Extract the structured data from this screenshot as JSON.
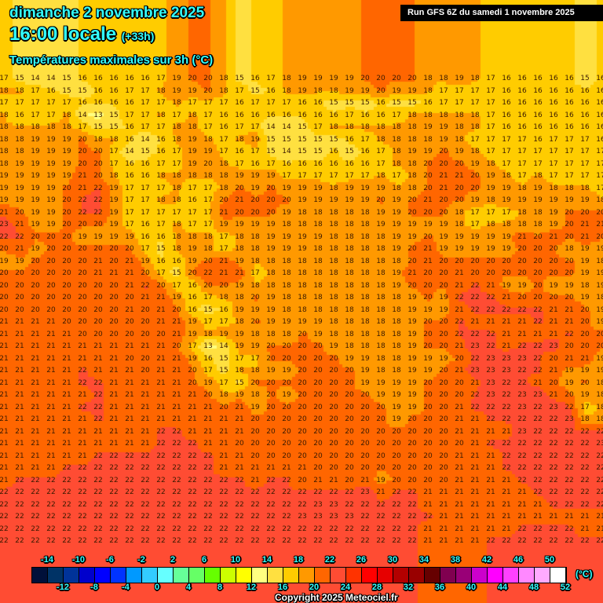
{
  "header": {
    "date": "dimanche 2 novembre 2025",
    "time": "16:00 locale",
    "lead": "(+33h)",
    "parameter": "Températures maximales sur 3h (°C)",
    "run": "Run GFS 6Z du samedi 1 novembre 2025"
  },
  "legend": {
    "unit": "(°C)",
    "min": -16,
    "step": 2,
    "colors": [
      "#00103a",
      "#003366",
      "#003399",
      "#0000cc",
      "#0000ff",
      "#0033ff",
      "#0099ff",
      "#33ccff",
      "#66ffff",
      "#66ff99",
      "#66ff66",
      "#66ff00",
      "#ccff00",
      "#ffff00",
      "#ffff80",
      "#ffe040",
      "#ffcc00",
      "#ff9900",
      "#ff6600",
      "#ff4c33",
      "#ff3300",
      "#ff0000",
      "#e60000",
      "#b30000",
      "#990000",
      "#660000",
      "#800050",
      "#990077",
      "#cc00cc",
      "#ff00ff",
      "#ff40ff",
      "#ff88ff",
      "#ffaaff",
      "#ffffff"
    ],
    "top_labels": [
      "-14",
      "-10",
      "-6",
      "-2",
      "2",
      "6",
      "10",
      "14",
      "18",
      "22",
      "26",
      "30",
      "34",
      "38",
      "42",
      "46",
      "50"
    ],
    "bottom_labels": [
      "-12",
      "-8",
      "-4",
      "0",
      "4",
      "8",
      "12",
      "16",
      "20",
      "24",
      "28",
      "32",
      "36",
      "40",
      "44",
      "48",
      "52"
    ]
  },
  "copyright": "Copyright 2025 Meteociel.fr",
  "grid_values": [
    [
      17,
      15,
      14,
      14,
      15,
      16,
      16,
      16,
      16,
      16,
      17,
      19,
      20,
      20,
      18,
      15,
      16,
      17,
      18,
      19,
      19,
      19,
      19,
      20,
      20,
      20,
      20,
      18,
      18,
      19,
      18,
      17,
      16,
      16,
      16,
      16,
      16,
      15,
      16
    ],
    [
      18,
      18,
      17,
      16,
      15,
      15,
      16,
      16,
      17,
      17,
      18,
      19,
      19,
      20,
      18,
      17,
      15,
      16,
      18,
      19,
      18,
      18,
      19,
      19,
      20,
      19,
      19,
      18,
      17,
      17,
      17,
      17,
      16,
      16,
      16,
      16,
      16,
      16,
      16
    ],
    [
      17,
      17,
      17,
      17,
      17,
      16,
      16,
      16,
      16,
      17,
      17,
      18,
      17,
      17,
      17,
      16,
      17,
      17,
      17,
      16,
      16,
      15,
      15,
      15,
      16,
      15,
      15,
      16,
      17,
      17,
      17,
      17,
      16,
      16,
      16,
      16,
      16,
      16,
      16
    ],
    [
      18,
      16,
      17,
      17,
      18,
      14,
      13,
      15,
      17,
      17,
      18,
      17,
      18,
      17,
      16,
      16,
      16,
      16,
      16,
      16,
      16,
      16,
      17,
      16,
      16,
      17,
      18,
      18,
      18,
      18,
      18,
      17,
      16,
      16,
      16,
      16,
      16,
      16,
      16
    ],
    [
      18,
      18,
      18,
      18,
      18,
      17,
      15,
      15,
      16,
      17,
      17,
      18,
      18,
      17,
      16,
      17,
      17,
      14,
      14,
      15,
      17,
      18,
      18,
      18,
      18,
      18,
      18,
      19,
      19,
      18,
      18,
      17,
      16,
      16,
      16,
      16,
      16,
      16,
      16
    ],
    [
      18,
      18,
      19,
      19,
      19,
      20,
      18,
      18,
      16,
      14,
      16,
      18,
      19,
      18,
      17,
      18,
      19,
      15,
      15,
      15,
      15,
      15,
      16,
      17,
      18,
      18,
      18,
      18,
      19,
      18,
      17,
      17,
      17,
      17,
      16,
      17,
      17,
      17,
      16
    ],
    [
      18,
      18,
      19,
      19,
      19,
      20,
      20,
      17,
      14,
      15,
      16,
      17,
      19,
      19,
      17,
      16,
      17,
      15,
      14,
      15,
      15,
      16,
      15,
      16,
      17,
      18,
      19,
      19,
      20,
      19,
      18,
      17,
      17,
      17,
      17,
      17,
      17,
      17,
      17
    ],
    [
      18,
      19,
      19,
      19,
      19,
      20,
      20,
      17,
      16,
      16,
      17,
      17,
      19,
      20,
      18,
      17,
      16,
      17,
      16,
      16,
      16,
      16,
      16,
      16,
      17,
      18,
      18,
      20,
      20,
      20,
      19,
      18,
      17,
      17,
      17,
      17,
      17,
      17,
      17
    ],
    [
      19,
      19,
      19,
      19,
      19,
      21,
      20,
      18,
      16,
      16,
      18,
      18,
      18,
      18,
      18,
      19,
      19,
      19,
      17,
      17,
      17,
      17,
      17,
      17,
      18,
      17,
      18,
      20,
      21,
      21,
      20,
      19,
      18,
      17,
      18,
      17,
      17,
      17,
      17
    ],
    [
      19,
      19,
      19,
      19,
      20,
      21,
      22,
      19,
      17,
      17,
      17,
      18,
      17,
      17,
      18,
      20,
      19,
      20,
      19,
      19,
      19,
      18,
      19,
      19,
      19,
      18,
      18,
      20,
      21,
      20,
      20,
      19,
      19,
      18,
      19,
      18,
      18,
      18,
      17
    ],
    [
      19,
      19,
      19,
      19,
      20,
      22,
      22,
      19,
      17,
      17,
      18,
      18,
      16,
      17,
      20,
      21,
      20,
      20,
      20,
      19,
      19,
      19,
      19,
      19,
      20,
      19,
      20,
      21,
      20,
      20,
      19,
      18,
      19,
      19,
      19,
      19,
      19,
      19,
      18
    ],
    [
      21,
      20,
      19,
      19,
      20,
      22,
      22,
      19,
      17,
      17,
      17,
      17,
      17,
      17,
      21,
      20,
      20,
      20,
      19,
      18,
      18,
      18,
      18,
      18,
      19,
      19,
      20,
      20,
      20,
      18,
      17,
      17,
      17,
      18,
      18,
      19,
      20,
      20,
      20
    ],
    [
      23,
      21,
      19,
      19,
      20,
      20,
      20,
      19,
      17,
      16,
      17,
      18,
      17,
      17,
      19,
      19,
      19,
      19,
      18,
      18,
      18,
      18,
      18,
      18,
      19,
      19,
      19,
      19,
      19,
      18,
      17,
      18,
      18,
      18,
      18,
      19,
      20,
      21,
      21
    ],
    [
      22,
      22,
      20,
      20,
      20,
      19,
      19,
      19,
      19,
      16,
      16,
      18,
      18,
      18,
      17,
      18,
      18,
      19,
      19,
      19,
      19,
      18,
      18,
      18,
      18,
      19,
      19,
      20,
      19,
      19,
      19,
      19,
      19,
      21,
      20,
      21,
      20,
      21,
      20
    ],
    [
      20,
      21,
      19,
      20,
      20,
      20,
      20,
      20,
      20,
      17,
      15,
      18,
      19,
      18,
      17,
      18,
      18,
      19,
      19,
      19,
      18,
      18,
      18,
      18,
      18,
      19,
      20,
      21,
      19,
      19,
      19,
      19,
      19,
      20,
      20,
      20,
      18,
      19,
      19
    ],
    [
      19,
      19,
      20,
      20,
      20,
      20,
      21,
      20,
      21,
      19,
      16,
      16,
      19,
      20,
      21,
      19,
      18,
      18,
      18,
      18,
      18,
      18,
      18,
      18,
      18,
      18,
      20,
      21,
      20,
      20,
      20,
      20,
      20,
      20,
      20,
      20,
      20,
      19,
      18
    ],
    [
      20,
      20,
      20,
      20,
      20,
      20,
      21,
      21,
      21,
      20,
      17,
      15,
      20,
      22,
      21,
      21,
      17,
      18,
      18,
      18,
      18,
      18,
      18,
      18,
      18,
      19,
      21,
      20,
      20,
      21,
      20,
      20,
      20,
      20,
      20,
      20,
      20,
      19,
      19
    ],
    [
      20,
      20,
      20,
      20,
      20,
      20,
      20,
      20,
      21,
      22,
      20,
      17,
      16,
      20,
      20,
      19,
      18,
      18,
      18,
      18,
      18,
      18,
      18,
      18,
      18,
      19,
      20,
      20,
      20,
      21,
      22,
      21,
      19,
      19,
      20,
      19,
      19,
      18,
      19
    ],
    [
      20,
      20,
      20,
      20,
      20,
      20,
      20,
      20,
      20,
      21,
      21,
      19,
      16,
      17,
      18,
      18,
      20,
      19,
      18,
      18,
      18,
      18,
      18,
      18,
      18,
      18,
      19,
      20,
      19,
      22,
      22,
      22,
      21,
      20,
      20,
      20,
      20,
      19,
      18
    ],
    [
      20,
      20,
      20,
      20,
      20,
      20,
      20,
      20,
      21,
      20,
      21,
      20,
      16,
      15,
      16,
      19,
      19,
      19,
      18,
      18,
      18,
      18,
      18,
      18,
      18,
      18,
      19,
      19,
      19,
      21,
      22,
      22,
      22,
      22,
      22,
      21,
      21,
      20,
      19
    ],
    [
      21,
      21,
      21,
      21,
      20,
      20,
      20,
      20,
      20,
      20,
      21,
      21,
      19,
      17,
      17,
      18,
      20,
      19,
      19,
      19,
      19,
      18,
      18,
      18,
      18,
      18,
      19,
      20,
      20,
      22,
      21,
      21,
      21,
      21,
      22,
      21,
      21,
      20,
      19
    ],
    [
      21,
      21,
      21,
      21,
      21,
      20,
      20,
      20,
      20,
      20,
      20,
      21,
      19,
      18,
      19,
      19,
      18,
      18,
      18,
      20,
      19,
      18,
      18,
      18,
      18,
      18,
      19,
      20,
      20,
      22,
      22,
      22,
      21,
      21,
      21,
      21,
      22,
      20,
      20
    ],
    [
      21,
      21,
      21,
      21,
      21,
      21,
      21,
      21,
      21,
      21,
      21,
      20,
      17,
      13,
      14,
      19,
      19,
      20,
      20,
      20,
      20,
      19,
      18,
      18,
      18,
      18,
      19,
      20,
      20,
      21,
      23,
      22,
      21,
      22,
      22,
      23,
      20,
      20,
      20
    ],
    [
      21,
      21,
      21,
      21,
      21,
      21,
      21,
      21,
      20,
      20,
      21,
      21,
      19,
      16,
      15,
      17,
      17,
      20,
      20,
      20,
      20,
      20,
      19,
      19,
      18,
      18,
      19,
      19,
      19,
      20,
      22,
      23,
      23,
      23,
      22,
      20,
      21,
      21,
      19
    ],
    [
      21,
      21,
      21,
      21,
      21,
      22,
      21,
      21,
      21,
      20,
      21,
      21,
      20,
      17,
      15,
      18,
      18,
      19,
      19,
      20,
      20,
      20,
      20,
      19,
      18,
      18,
      19,
      19,
      20,
      21,
      23,
      23,
      23,
      22,
      22,
      21,
      19,
      19,
      19
    ],
    [
      21,
      21,
      21,
      21,
      21,
      22,
      22,
      21,
      21,
      21,
      21,
      21,
      20,
      19,
      17,
      15,
      20,
      20,
      20,
      20,
      20,
      20,
      20,
      19,
      19,
      19,
      19,
      20,
      20,
      20,
      21,
      23,
      22,
      22,
      21,
      20,
      19,
      20,
      18
    ],
    [
      21,
      21,
      21,
      21,
      21,
      21,
      22,
      21,
      21,
      21,
      21,
      21,
      21,
      20,
      18,
      19,
      18,
      20,
      19,
      20,
      20,
      20,
      20,
      20,
      19,
      19,
      19,
      20,
      20,
      20,
      22,
      23,
      22,
      23,
      23,
      21,
      20,
      19,
      18
    ],
    [
      21,
      21,
      21,
      21,
      21,
      22,
      22,
      21,
      21,
      21,
      21,
      21,
      21,
      21,
      20,
      21,
      19,
      20,
      20,
      20,
      20,
      20,
      20,
      20,
      20,
      19,
      19,
      20,
      20,
      21,
      22,
      22,
      22,
      23,
      22,
      23,
      22,
      17,
      18
    ],
    [
      21,
      21,
      21,
      21,
      21,
      21,
      22,
      21,
      21,
      21,
      21,
      21,
      21,
      21,
      21,
      21,
      20,
      20,
      20,
      20,
      20,
      20,
      20,
      20,
      20,
      19,
      20,
      20,
      20,
      21,
      21,
      22,
      22,
      22,
      22,
      22,
      23,
      18,
      18
    ],
    [
      21,
      21,
      21,
      21,
      21,
      21,
      21,
      21,
      21,
      21,
      22,
      22,
      21,
      21,
      21,
      21,
      20,
      20,
      20,
      20,
      20,
      20,
      20,
      20,
      20,
      20,
      20,
      20,
      20,
      21,
      21,
      21,
      21,
      23,
      22,
      22,
      22,
      22,
      22
    ],
    [
      21,
      21,
      21,
      21,
      21,
      21,
      21,
      21,
      21,
      21,
      22,
      22,
      22,
      21,
      21,
      20,
      20,
      20,
      20,
      20,
      20,
      20,
      20,
      20,
      20,
      20,
      20,
      20,
      20,
      20,
      21,
      22,
      22,
      22,
      22,
      22,
      22,
      22,
      23
    ],
    [
      21,
      21,
      21,
      21,
      21,
      21,
      22,
      22,
      22,
      22,
      22,
      22,
      22,
      22,
      21,
      21,
      20,
      20,
      20,
      20,
      20,
      20,
      20,
      20,
      20,
      20,
      20,
      20,
      20,
      21,
      21,
      21,
      22,
      22,
      22,
      22,
      22,
      22,
      22
    ],
    [
      21,
      21,
      21,
      21,
      22,
      22,
      22,
      22,
      22,
      22,
      22,
      22,
      22,
      22,
      21,
      21,
      21,
      21,
      21,
      21,
      20,
      20,
      20,
      20,
      20,
      20,
      20,
      20,
      20,
      21,
      21,
      21,
      22,
      22,
      22,
      22,
      22,
      22,
      22
    ],
    [
      21,
      22,
      22,
      22,
      22,
      22,
      22,
      22,
      22,
      22,
      22,
      22,
      22,
      22,
      22,
      22,
      21,
      22,
      22,
      20,
      21,
      21,
      20,
      21,
      19,
      20,
      20,
      20,
      20,
      21,
      21,
      21,
      21,
      22,
      22,
      22,
      22,
      22,
      22
    ],
    [
      22,
      22,
      22,
      22,
      22,
      22,
      22,
      22,
      22,
      22,
      22,
      22,
      22,
      22,
      22,
      22,
      22,
      22,
      22,
      22,
      22,
      22,
      22,
      23,
      21,
      22,
      22,
      21,
      21,
      21,
      21,
      21,
      21,
      21,
      22,
      22,
      22,
      22,
      22
    ],
    [
      22,
      22,
      22,
      22,
      22,
      22,
      22,
      22,
      22,
      22,
      22,
      22,
      22,
      22,
      22,
      22,
      22,
      22,
      22,
      22,
      23,
      23,
      22,
      22,
      22,
      22,
      22,
      21,
      21,
      21,
      21,
      21,
      21,
      21,
      21,
      22,
      22,
      22,
      22
    ],
    [
      22,
      22,
      22,
      22,
      22,
      22,
      22,
      22,
      22,
      22,
      22,
      22,
      22,
      22,
      22,
      22,
      22,
      22,
      22,
      23,
      23,
      23,
      23,
      22,
      22,
      22,
      22,
      22,
      21,
      21,
      21,
      21,
      21,
      21,
      21,
      21,
      21,
      21,
      21
    ],
    [
      22,
      22,
      22,
      22,
      22,
      22,
      22,
      22,
      22,
      22,
      22,
      22,
      22,
      22,
      22,
      22,
      22,
      22,
      22,
      22,
      22,
      22,
      22,
      22,
      22,
      22,
      22,
      21,
      21,
      21,
      21,
      21,
      21,
      22,
      22,
      22,
      22,
      21,
      21
    ],
    [
      22,
      22,
      22,
      22,
      22,
      22,
      22,
      22,
      22,
      22,
      22,
      22,
      22,
      22,
      22,
      22,
      22,
      22,
      22,
      22,
      22,
      22,
      22,
      22,
      22,
      22,
      22,
      21,
      21,
      21,
      21,
      22,
      22,
      22,
      22,
      22,
      22,
      22,
      22
    ]
  ]
}
